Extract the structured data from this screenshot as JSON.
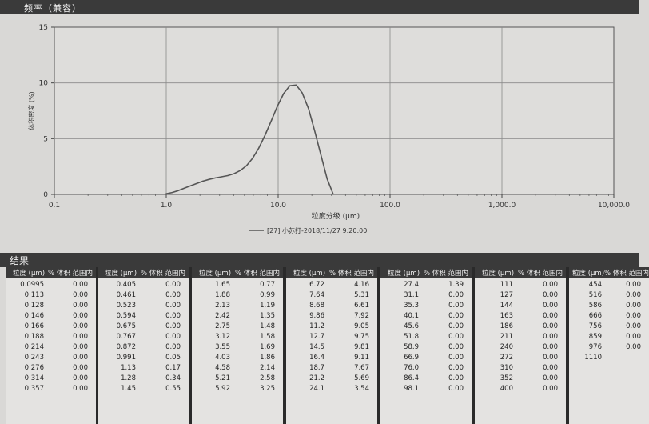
{
  "freq_title": "频率（兼容）",
  "results_title": "结果",
  "table_headers": {
    "size": "粒度 (μm)",
    "volume": "% 体积 范围内"
  },
  "chart_data": {
    "type": "line",
    "xscale": "log",
    "xlim": [
      0.1,
      10000
    ],
    "ylim": [
      0,
      15
    ],
    "xlabel": "粒度分级 (μm)",
    "ylabel": "体积密度 (%)",
    "xticks": [
      "0.1",
      "1.0",
      "10.0",
      "100.0",
      "1,000.0",
      "10,000.0"
    ],
    "yticks": [
      "0",
      "5",
      "10",
      "15"
    ],
    "grid": true,
    "legend_position": "bottom-center",
    "series": [
      {
        "name": "[27] 小苏打-2018/11/27 9:20:00",
        "color": "#555555",
        "x": [
          0.991,
          1.13,
          1.28,
          1.45,
          1.65,
          1.88,
          2.13,
          2.42,
          2.75,
          3.12,
          3.55,
          4.03,
          4.58,
          5.21,
          5.92,
          6.72,
          7.64,
          8.68,
          9.86,
          11.2,
          12.7,
          14.5,
          16.4,
          18.7,
          21.2,
          24.1,
          27.4,
          31.1
        ],
        "y": [
          0.05,
          0.17,
          0.34,
          0.55,
          0.77,
          0.99,
          1.19,
          1.35,
          1.48,
          1.58,
          1.69,
          1.86,
          2.14,
          2.58,
          3.25,
          4.16,
          5.31,
          6.61,
          7.92,
          9.05,
          9.75,
          9.81,
          9.11,
          7.67,
          5.69,
          3.54,
          1.39,
          0.0
        ]
      }
    ]
  },
  "table_columns": [
    {
      "rows": [
        [
          "0.0995",
          "0.00"
        ],
        [
          "0.113",
          "0.00"
        ],
        [
          "0.128",
          "0.00"
        ],
        [
          "0.146",
          "0.00"
        ],
        [
          "0.166",
          "0.00"
        ],
        [
          "0.188",
          "0.00"
        ],
        [
          "0.214",
          "0.00"
        ],
        [
          "0.243",
          "0.00"
        ],
        [
          "0.276",
          "0.00"
        ],
        [
          "0.314",
          "0.00"
        ],
        [
          "0.357",
          "0.00"
        ]
      ]
    },
    {
      "rows": [
        [
          "0.405",
          "0.00"
        ],
        [
          "0.461",
          "0.00"
        ],
        [
          "0.523",
          "0.00"
        ],
        [
          "0.594",
          "0.00"
        ],
        [
          "0.675",
          "0.00"
        ],
        [
          "0.767",
          "0.00"
        ],
        [
          "0.872",
          "0.00"
        ],
        [
          "0.991",
          "0.05"
        ],
        [
          "1.13",
          "0.17"
        ],
        [
          "1.28",
          "0.34"
        ],
        [
          "1.45",
          "0.55"
        ]
      ]
    },
    {
      "rows": [
        [
          "1.65",
          "0.77"
        ],
        [
          "1.88",
          "0.99"
        ],
        [
          "2.13",
          "1.19"
        ],
        [
          "2.42",
          "1.35"
        ],
        [
          "2.75",
          "1.48"
        ],
        [
          "3.12",
          "1.58"
        ],
        [
          "3.55",
          "1.69"
        ],
        [
          "4.03",
          "1.86"
        ],
        [
          "4.58",
          "2.14"
        ],
        [
          "5.21",
          "2.58"
        ],
        [
          "5.92",
          "3.25"
        ]
      ]
    },
    {
      "rows": [
        [
          "6.72",
          "4.16"
        ],
        [
          "7.64",
          "5.31"
        ],
        [
          "8.68",
          "6.61"
        ],
        [
          "9.86",
          "7.92"
        ],
        [
          "11.2",
          "9.05"
        ],
        [
          "12.7",
          "9.75"
        ],
        [
          "14.5",
          "9.81"
        ],
        [
          "16.4",
          "9.11"
        ],
        [
          "18.7",
          "7.67"
        ],
        [
          "21.2",
          "5.69"
        ],
        [
          "24.1",
          "3.54"
        ]
      ]
    },
    {
      "rows": [
        [
          "27.4",
          "1.39"
        ],
        [
          "31.1",
          "0.00"
        ],
        [
          "35.3",
          "0.00"
        ],
        [
          "40.1",
          "0.00"
        ],
        [
          "45.6",
          "0.00"
        ],
        [
          "51.8",
          "0.00"
        ],
        [
          "58.9",
          "0.00"
        ],
        [
          "66.9",
          "0.00"
        ],
        [
          "76.0",
          "0.00"
        ],
        [
          "86.4",
          "0.00"
        ],
        [
          "98.1",
          "0.00"
        ]
      ]
    },
    {
      "rows": [
        [
          "111",
          "0.00"
        ],
        [
          "127",
          "0.00"
        ],
        [
          "144",
          "0.00"
        ],
        [
          "163",
          "0.00"
        ],
        [
          "186",
          "0.00"
        ],
        [
          "211",
          "0.00"
        ],
        [
          "240",
          "0.00"
        ],
        [
          "272",
          "0.00"
        ],
        [
          "310",
          "0.00"
        ],
        [
          "352",
          "0.00"
        ],
        [
          "400",
          "0.00"
        ]
      ]
    },
    {
      "rows": [
        [
          "454",
          "0.00"
        ],
        [
          "516",
          "0.00"
        ],
        [
          "586",
          "0.00"
        ],
        [
          "666",
          "0.00"
        ],
        [
          "756",
          "0.00"
        ],
        [
          "859",
          "0.00"
        ],
        [
          "976",
          "0.00"
        ],
        [
          "1110",
          ""
        ]
      ]
    }
  ]
}
